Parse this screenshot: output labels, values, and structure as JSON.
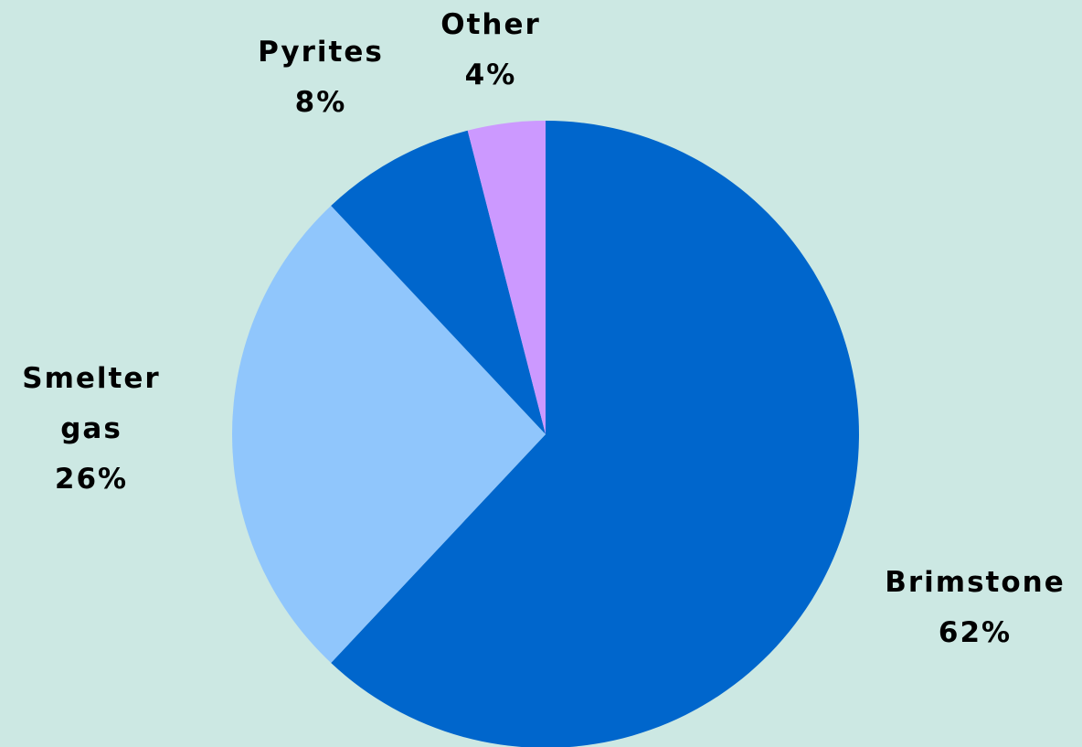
{
  "chart_data": {
    "type": "pie",
    "title": "",
    "background": "#cce8e3",
    "legend": "none",
    "start_angle_deg": 0,
    "direction": "clockwise",
    "slices": [
      {
        "label_lines": [
          "Brimstone"
        ],
        "value": 62,
        "value_label": "62%",
        "color": "#0066cc"
      },
      {
        "label_lines": [
          "Smelter",
          "gas"
        ],
        "value": 26,
        "value_label": "26%",
        "color": "#90c6fc"
      },
      {
        "label_lines": [
          "Pyrites"
        ],
        "value": 8,
        "value_label": "8%",
        "color": "#0066cc"
      },
      {
        "label_lines": [
          "Other"
        ],
        "value": 4,
        "value_label": "4%",
        "color": "#cc99ff"
      }
    ]
  }
}
